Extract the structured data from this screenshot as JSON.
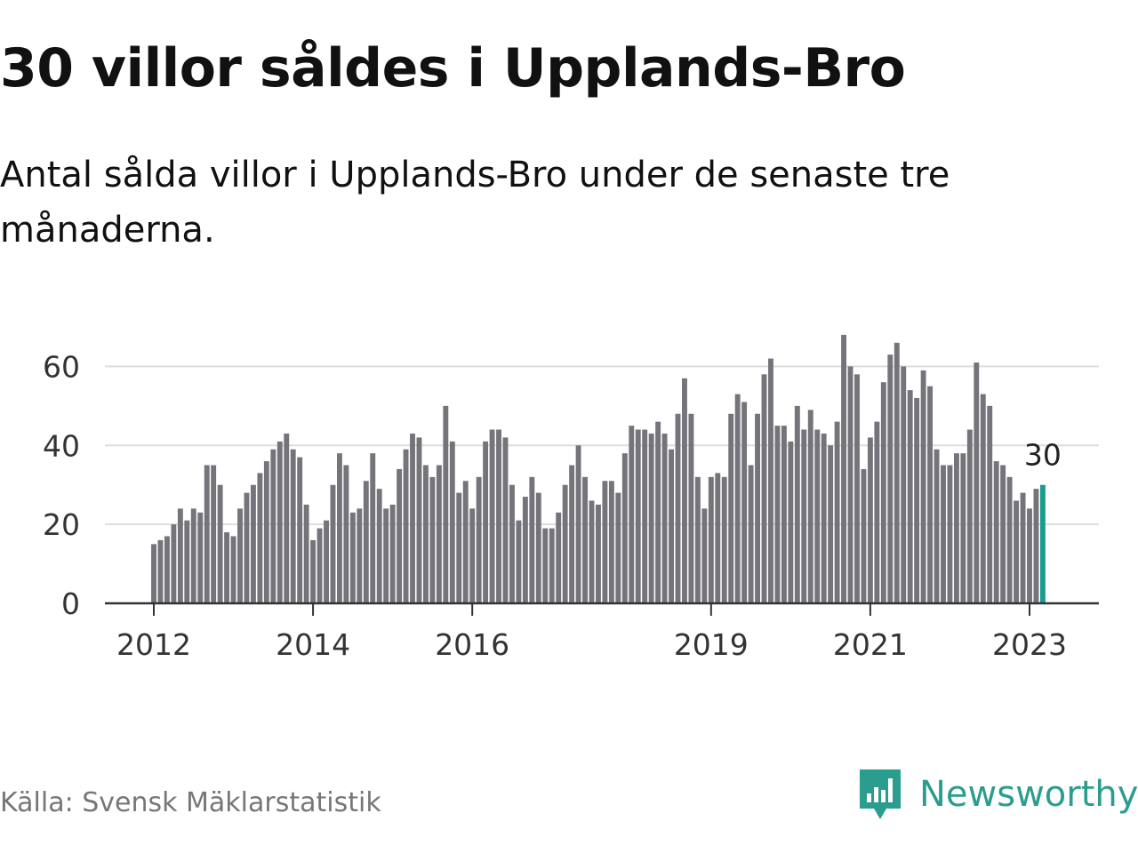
{
  "title": "30 villor såldes i Upplands-Bro",
  "subtitle": "Antal sålda villor i Upplands-Bro under de senaste tre månaderna.",
  "source": "Källa: Svensk Mäklarstatistik",
  "brand": "Newsworthy",
  "colors": {
    "bar": "#75747a",
    "highlight": "#1a9c8e",
    "grid": "#dddddd",
    "axis": "#333333",
    "brand": "#2a9d8f"
  },
  "chart_data": {
    "type": "bar",
    "title": "30 villor såldes i Upplands-Bro",
    "xlabel": "",
    "ylabel": "",
    "ylim": [
      0,
      70
    ],
    "yticks": [
      0,
      20,
      40,
      60
    ],
    "grid": true,
    "x_tick_labels": [
      {
        "label": "2012",
        "index": 0
      },
      {
        "label": "2014",
        "index": 24
      },
      {
        "label": "2016",
        "index": 48
      },
      {
        "label": "2019",
        "index": 84
      },
      {
        "label": "2021",
        "index": 108
      },
      {
        "label": "2023",
        "index": 132
      }
    ],
    "highlight_label": "30",
    "start_period": "2012-01",
    "end_period": "2023-03",
    "values": [
      15,
      16,
      17,
      20,
      24,
      21,
      24,
      23,
      35,
      35,
      30,
      18,
      17,
      24,
      28,
      30,
      33,
      36,
      39,
      41,
      43,
      39,
      37,
      25,
      16,
      19,
      21,
      30,
      38,
      35,
      23,
      24,
      31,
      38,
      29,
      24,
      25,
      34,
      39,
      43,
      42,
      35,
      32,
      35,
      50,
      41,
      28,
      31,
      24,
      32,
      41,
      44,
      44,
      42,
      30,
      21,
      27,
      32,
      28,
      19,
      19,
      23,
      30,
      35,
      40,
      32,
      26,
      25,
      31,
      31,
      28,
      38,
      45,
      44,
      44,
      43,
      46,
      43,
      39,
      48,
      57,
      48,
      32,
      24,
      32,
      33,
      32,
      48,
      53,
      51,
      35,
      48,
      58,
      62,
      45,
      45,
      41,
      50,
      44,
      49,
      44,
      43,
      40,
      46,
      68,
      60,
      58,
      34,
      42,
      46,
      56,
      63,
      66,
      60,
      54,
      52,
      59,
      55,
      39,
      35,
      35,
      38,
      38,
      44,
      61,
      53,
      50,
      36,
      35,
      32,
      26,
      28,
      24,
      29,
      30
    ]
  }
}
